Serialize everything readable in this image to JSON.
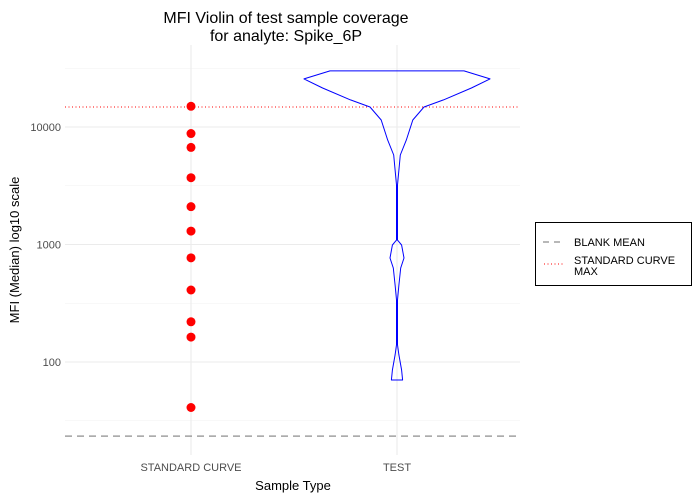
{
  "chart_data": {
    "type": "violin",
    "title": [
      "MFI Violin of test sample coverage",
      "for analyte: Spike_6P"
    ],
    "xlabel": "Sample Type",
    "ylabel": "MFI (Median) log10 scale",
    "yscale": "log10",
    "ylim": [
      18,
      36000
    ],
    "yticks": [
      100,
      1000,
      10000
    ],
    "ytick_labels": [
      "100",
      "1000",
      "10000"
    ],
    "categories": [
      "STANDARD CURVE",
      "TEST"
    ],
    "grid": true,
    "standard_curve_points": {
      "category": "STANDARD CURVE",
      "color": "#ff0000",
      "values": [
        15000,
        8800,
        6700,
        3700,
        2100,
        1300,
        770,
        410,
        220,
        163,
        41
      ]
    },
    "test_violin": {
      "category": "TEST",
      "color": "#0000ff",
      "profile_values": [
        30000,
        25650,
        21480,
        17000,
        14800,
        11480,
        7740,
        5780,
        4300,
        3210,
        1090,
        990,
        767,
        631,
        452,
        337,
        140,
        115,
        85.5,
        70.3
      ],
      "profile_density": [
        0.72,
        1.0,
        0.8,
        0.5,
        0.29,
        0.17,
        0.1,
        0.035,
        0.02,
        0.005,
        0.005,
        0.05,
        0.075,
        0.04,
        0.02,
        0.005,
        0.005,
        0.02,
        0.05,
        0.06
      ]
    },
    "reference_lines": [
      {
        "label": "BLANK MEAN",
        "value": 23.4,
        "style": "dashed",
        "color": "#a0a0a0"
      },
      {
        "label": "STANDARD CURVE MAX",
        "label_lines": [
          "STANDARD CURVE",
          "MAX"
        ],
        "value": 14800,
        "style": "dotted",
        "color": "#ff0000"
      }
    ],
    "legend_position": "right"
  }
}
